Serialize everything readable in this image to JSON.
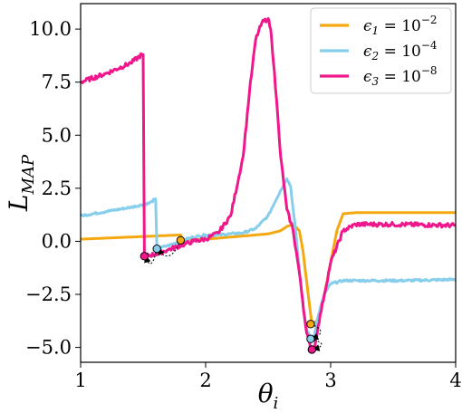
{
  "chart_data": {
    "type": "line",
    "title": "",
    "xlabel": "θ_i",
    "ylabel": "L_MAP",
    "xlim": [
      1,
      4
    ],
    "ylim": [
      -5.7,
      11.2
    ],
    "xticks": [
      1,
      2,
      3,
      4
    ],
    "xtick_labels": [
      "1",
      "2",
      "3",
      "4"
    ],
    "yticks": [
      -5.0,
      -2.5,
      0.0,
      2.5,
      5.0,
      7.5,
      10.0
    ],
    "ytick_labels": [
      "−5.0",
      "−2.5",
      "0.0",
      "2.5",
      "5.0",
      "7.5",
      "10.0"
    ],
    "grid": false,
    "legend_position": "top-right",
    "series": [
      {
        "name": "ε1 = 10^-2",
        "legend_label": {
          "base": "ϵ",
          "sub": "1",
          "mid": " = 10",
          "sup": "−2"
        },
        "color": "#f5a80f",
        "x": [
          1.0,
          1.2,
          1.4,
          1.6,
          1.8,
          1.81,
          2.0,
          2.2,
          2.4,
          2.5,
          2.6,
          2.65,
          2.7,
          2.75,
          2.78,
          2.82,
          2.85,
          2.9,
          2.95,
          3.0,
          3.05,
          3.1,
          3.2,
          3.5,
          4.0
        ],
        "y": [
          0.1,
          0.15,
          0.2,
          0.25,
          0.3,
          0.05,
          0.1,
          0.2,
          0.3,
          0.35,
          0.5,
          0.7,
          0.8,
          0.5,
          -0.5,
          -2.5,
          -3.9,
          -3.7,
          -2.5,
          -1.0,
          0.5,
          1.3,
          1.35,
          1.35,
          1.35
        ],
        "jitter": 0.0,
        "markers": [
          {
            "x": 1.8,
            "y": 0.05
          },
          {
            "x": 2.84,
            "y": -3.9
          }
        ]
      },
      {
        "name": "ε2 = 10^-4",
        "legend_label": {
          "base": "ϵ",
          "sub": "2",
          "mid": " = 10",
          "sup": "−4"
        },
        "color": "#87ceeb",
        "x": [
          1.0,
          1.2,
          1.4,
          1.55,
          1.6,
          1.61,
          1.7,
          1.8,
          1.9,
          2.0,
          2.1,
          2.2,
          2.3,
          2.4,
          2.5,
          2.55,
          2.6,
          2.65,
          2.68,
          2.72,
          2.76,
          2.8,
          2.84,
          2.87,
          2.9,
          2.95,
          3.0,
          3.1,
          3.3,
          3.6,
          4.0
        ],
        "y": [
          1.2,
          1.4,
          1.6,
          1.8,
          2.0,
          -0.35,
          -0.2,
          0.0,
          0.2,
          0.3,
          0.3,
          0.35,
          0.4,
          0.6,
          1.2,
          1.8,
          2.4,
          2.95,
          2.6,
          0.5,
          -2.0,
          -4.0,
          -4.6,
          -4.4,
          -3.5,
          -2.5,
          -2.0,
          -1.85,
          -1.85,
          -1.85,
          -1.8
        ],
        "jitter": 0.05,
        "markers": [
          {
            "x": 1.61,
            "y": -0.35
          },
          {
            "x": 2.84,
            "y": -4.6
          }
        ]
      },
      {
        "name": "ε3 = 10^-8",
        "legend_label": {
          "base": "ϵ",
          "sub": "3",
          "mid": " = 10",
          "sup": "−8"
        },
        "color": "#f0178c",
        "x": [
          1.0,
          1.2,
          1.4,
          1.49,
          1.5,
          1.51,
          1.6,
          1.7,
          1.8,
          1.9,
          2.0,
          2.1,
          2.2,
          2.3,
          2.35,
          2.4,
          2.45,
          2.5,
          2.52,
          2.55,
          2.6,
          2.65,
          2.7,
          2.75,
          2.8,
          2.84,
          2.87,
          2.9,
          2.95,
          3.0,
          3.1,
          3.2,
          3.5,
          4.0
        ],
        "y": [
          7.5,
          7.9,
          8.4,
          8.8,
          8.8,
          -0.7,
          -0.6,
          -0.4,
          -0.2,
          0.0,
          0.1,
          0.4,
          1.2,
          4.0,
          7.0,
          9.5,
          10.3,
          10.5,
          10.0,
          8.0,
          4.0,
          1.5,
          0.5,
          -1.5,
          -4.0,
          -5.1,
          -5.0,
          -4.0,
          -2.5,
          -1.0,
          0.5,
          0.8,
          0.8,
          0.75
        ],
        "jitter": 0.1,
        "markers": [
          {
            "x": 1.51,
            "y": -0.7
          },
          {
            "x": 2.85,
            "y": -5.1
          }
        ]
      }
    ],
    "annotations": [
      {
        "type": "dotted-arrow",
        "from": {
          "x": 1.8,
          "y": 0.05
        },
        "to": {
          "x": 1.62,
          "y": -0.35
        },
        "bend": "down"
      },
      {
        "type": "dotted-arrow",
        "from": {
          "x": 1.61,
          "y": -0.35
        },
        "to": {
          "x": 1.52,
          "y": -0.7
        },
        "bend": "down"
      },
      {
        "type": "dotted-arrow",
        "from": {
          "x": 2.84,
          "y": -3.9
        },
        "to": {
          "x": 2.85,
          "y": -4.6
        },
        "bend": "right"
      },
      {
        "type": "dotted-arrow",
        "from": {
          "x": 2.84,
          "y": -4.6
        },
        "to": {
          "x": 2.86,
          "y": -5.1
        },
        "bend": "right"
      }
    ]
  }
}
